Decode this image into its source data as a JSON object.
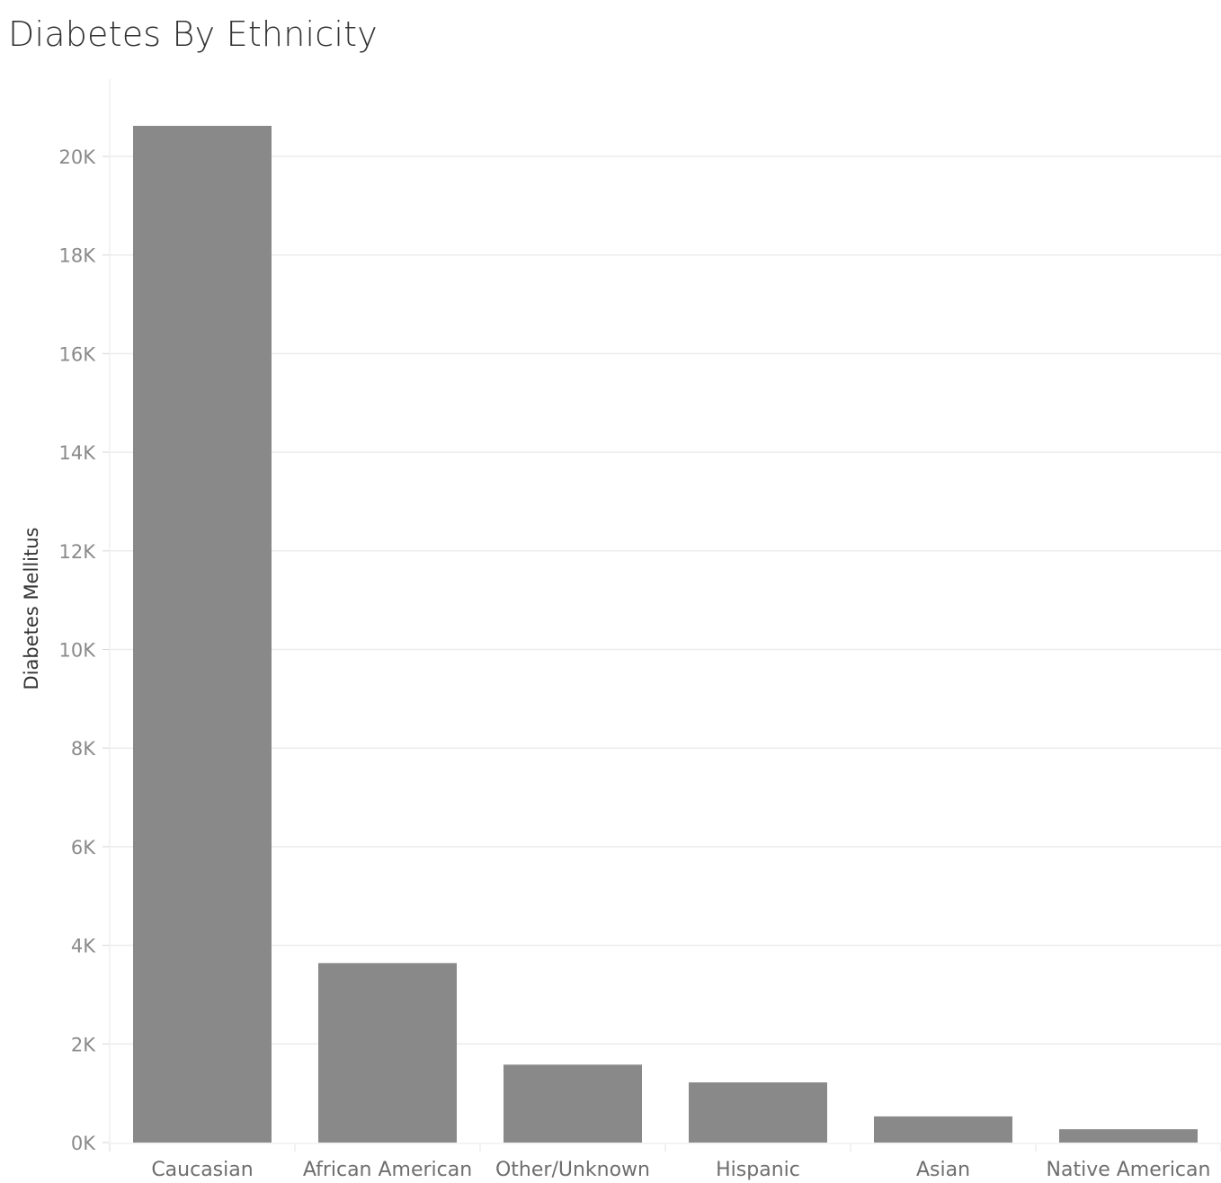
{
  "chart_data": {
    "type": "bar",
    "title": "Diabetes By Ethnicity",
    "xlabel": "",
    "ylabel": "Diabetes Mellitus",
    "categories": [
      "Caucasian",
      "African American",
      "Other/Unknown",
      "Hispanic",
      "Asian",
      "Native American"
    ],
    "values": [
      20620,
      3640,
      1580,
      1220,
      530,
      270
    ],
    "ylim": [
      0,
      21600
    ],
    "yticks": [
      0,
      2000,
      4000,
      6000,
      8000,
      10000,
      12000,
      14000,
      16000,
      18000,
      20000
    ],
    "ytick_labels": [
      "0K",
      "2K",
      "4K",
      "6K",
      "8K",
      "10K",
      "12K",
      "14K",
      "16K",
      "18K",
      "20K"
    ],
    "grid": true,
    "bar_color": "#898989",
    "grid_color": "#ececec"
  }
}
